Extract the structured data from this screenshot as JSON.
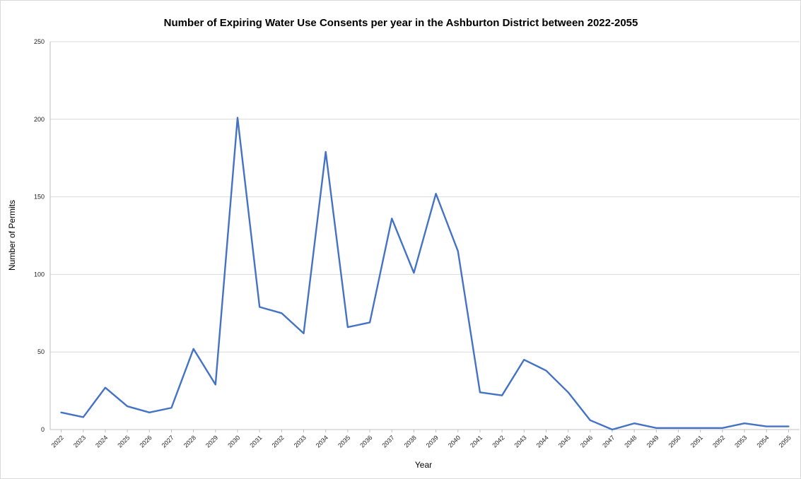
{
  "chart_data": {
    "type": "line",
    "title": "Number of Expiring Water Use Consents per year in the Ashburton District between 2022-2055",
    "xlabel": "Year",
    "ylabel": "Number of Permits",
    "ylim": [
      0,
      250
    ],
    "yticks": [
      "0",
      "50",
      "100",
      "150",
      "200",
      "250"
    ],
    "grid": true,
    "legend": "none",
    "categories": [
      "2022",
      "2023",
      "2024",
      "2025",
      "2026",
      "2027",
      "2028",
      "2029",
      "2030",
      "2031",
      "2032",
      "2033",
      "2034",
      "2035",
      "2036",
      "2037",
      "2038",
      "2039",
      "2040",
      "2041",
      "2042",
      "2043",
      "2044",
      "2045",
      "2046",
      "2047",
      "2048",
      "2049",
      "2050",
      "2051",
      "2052",
      "2053",
      "2054",
      "2055"
    ],
    "series": [
      {
        "color": "#4472c4",
        "values": [
          11,
          8,
          27,
          15,
          11,
          14,
          52,
          29,
          201,
          79,
          75,
          62,
          179,
          66,
          69,
          136,
          101,
          152,
          115,
          24,
          22,
          45,
          38,
          24,
          6,
          0,
          4,
          1,
          1,
          1,
          1,
          4,
          2,
          2
        ]
      }
    ]
  }
}
